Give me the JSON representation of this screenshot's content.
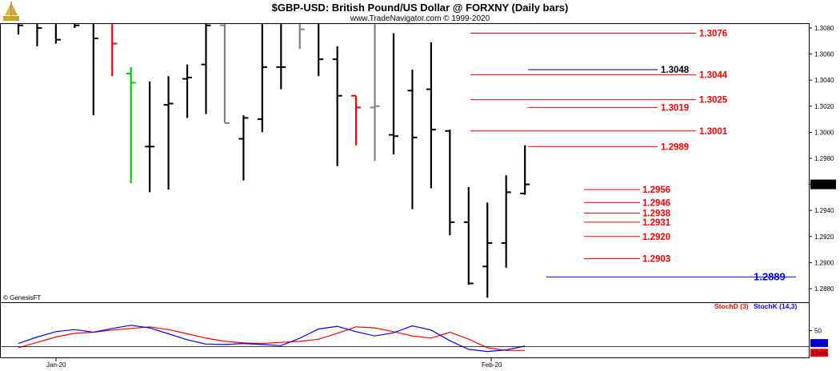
{
  "header": {
    "title": "$GBP-USD:  British Pound/US Dollar @ FORXNY  (Daily bars)",
    "subtitle": "www.TradeNavigator.com © 1999-2020",
    "logo_icon": "sailing-ship-logo"
  },
  "watermark": "© GenesisFT",
  "colors": {
    "bar_up": "#000000",
    "bar_gray": "#808080",
    "bar_red": "#ff0000",
    "bar_green": "#00cc00",
    "level_red": "#ff0000",
    "level_black": "#000000",
    "level_blue": "#0000ff",
    "stoch_d": "#ff0000",
    "stoch_k": "#0000ff",
    "price_marker_bg": "#000000"
  },
  "chart_data": [
    {
      "type": "ohlc",
      "ylim": [
        1.287,
        1.3085
      ],
      "y_ticks": [
        "1.3080",
        "1.3060",
        "1.3040",
        "1.3020",
        "1.3000",
        "1.2980",
        "1.2960",
        "1.2940",
        "1.2920",
        "1.2900",
        "1.2880"
      ],
      "x_ticks": [
        "Jan-20",
        "Feb-20"
      ],
      "last_price": "1.2960",
      "bars": [
        {
          "i": 0,
          "o": 1.3085,
          "h": 1.3085,
          "l": 1.3075,
          "c": 1.3082,
          "color": "bar_up"
        },
        {
          "i": 1,
          "o": 1.3085,
          "h": 1.3085,
          "l": 1.3066,
          "c": 1.308,
          "color": "bar_up"
        },
        {
          "i": 2,
          "o": 1.3085,
          "h": 1.3085,
          "l": 1.3068,
          "c": 1.3071,
          "color": "bar_up"
        },
        {
          "i": 3,
          "o": 1.3085,
          "h": 1.3085,
          "l": 1.308,
          "c": 1.3082,
          "color": "bar_up"
        },
        {
          "i": 4,
          "o": 1.3085,
          "h": 1.3085,
          "l": 1.3013,
          "c": 1.3072,
          "color": "bar_up"
        },
        {
          "i": 5,
          "o": 1.3085,
          "h": 1.3085,
          "l": 1.3043,
          "c": 1.3068,
          "color": "bar_red"
        },
        {
          "i": 6,
          "o": 1.3045,
          "h": 1.305,
          "l": 1.2961,
          "c": 1.3038,
          "color": "bar_green"
        },
        {
          "i": 7,
          "o": 1.2989,
          "h": 1.3039,
          "l": 1.2954,
          "c": 1.2989,
          "color": "bar_up"
        },
        {
          "i": 8,
          "o": 1.3021,
          "h": 1.3043,
          "l": 1.2956,
          "c": 1.3022,
          "color": "bar_up"
        },
        {
          "i": 9,
          "o": 1.3041,
          "h": 1.3052,
          "l": 1.3011,
          "c": 1.3042,
          "color": "bar_up"
        },
        {
          "i": 10,
          "o": 1.3052,
          "h": 1.3085,
          "l": 1.3014,
          "c": 1.3082,
          "color": "bar_up"
        },
        {
          "i": 11,
          "o": 1.3082,
          "h": 1.3085,
          "l": 1.3007,
          "c": 1.3007,
          "color": "bar_gray"
        },
        {
          "i": 12,
          "o": 1.2995,
          "h": 1.3013,
          "l": 1.2963,
          "c": 1.3011,
          "color": "bar_up"
        },
        {
          "i": 13,
          "o": 1.301,
          "h": 1.3085,
          "l": 1.3,
          "c": 1.305,
          "color": "bar_up"
        },
        {
          "i": 14,
          "o": 1.305,
          "h": 1.3085,
          "l": 1.3033,
          "c": 1.305,
          "color": "bar_up"
        },
        {
          "i": 15,
          "o": 1.3085,
          "h": 1.3085,
          "l": 1.3064,
          "c": 1.3079,
          "color": "bar_gray"
        },
        {
          "i": 16,
          "o": 1.3085,
          "h": 1.3085,
          "l": 1.3043,
          "c": 1.3056,
          "color": "bar_up"
        },
        {
          "i": 17,
          "o": 1.3056,
          "h": 1.3066,
          "l": 1.2974,
          "c": 1.3028,
          "color": "bar_up"
        },
        {
          "i": 18,
          "o": 1.3028,
          "h": 1.3028,
          "l": 1.299,
          "c": 1.3019,
          "color": "bar_red"
        },
        {
          "i": 19,
          "o": 1.3019,
          "h": 1.3085,
          "l": 1.2978,
          "c": 1.302,
          "color": "bar_gray"
        },
        {
          "i": 20,
          "o": 1.2998,
          "h": 1.3076,
          "l": 1.2983,
          "c": 1.2997,
          "color": "bar_up"
        },
        {
          "i": 21,
          "o": 1.3032,
          "h": 1.3048,
          "l": 1.2941,
          "c": 1.2996,
          "color": "bar_up"
        },
        {
          "i": 22,
          "o": 1.3033,
          "h": 1.3069,
          "l": 1.2957,
          "c": 1.3002,
          "color": "bar_up"
        },
        {
          "i": 23,
          "o": 1.3001,
          "h": 1.3002,
          "l": 1.2921,
          "c": 1.2931,
          "color": "bar_up"
        },
        {
          "i": 24,
          "o": 1.2931,
          "h": 1.2958,
          "l": 1.2883,
          "c": 1.2884,
          "color": "bar_up"
        },
        {
          "i": 25,
          "o": 1.2897,
          "h": 1.2946,
          "l": 1.2873,
          "c": 1.2915,
          "color": "bar_up"
        },
        {
          "i": 26,
          "o": 1.2915,
          "h": 1.2967,
          "l": 1.2896,
          "c": 1.2954,
          "color": "bar_up"
        },
        {
          "i": 27,
          "o": 1.2953,
          "h": 1.299,
          "l": 1.2952,
          "c": 1.296,
          "color": "bar_up"
        }
      ],
      "levels": [
        {
          "value": 1.3076,
          "label": "1.3076",
          "color": "level_red",
          "x_from": 1.3076,
          "span": "wide"
        },
        {
          "value": 1.3048,
          "label": "1.3048",
          "color": "level_black",
          "span": "short"
        },
        {
          "value": 1.3044,
          "label": "1.3044",
          "color": "level_red",
          "span": "wide"
        },
        {
          "value": 1.3025,
          "label": "1.3025",
          "color": "level_red",
          "span": "wide"
        },
        {
          "value": 1.3019,
          "label": "1.3019",
          "color": "level_red",
          "span": "short"
        },
        {
          "value": 1.3001,
          "label": "1.3001",
          "color": "level_red",
          "span": "wide"
        },
        {
          "value": 1.2989,
          "label": "1.2989",
          "color": "level_red",
          "span": "short"
        },
        {
          "value": 1.2956,
          "label": "1.2956",
          "color": "level_red",
          "span": "tiny"
        },
        {
          "value": 1.2946,
          "label": "1.2946",
          "color": "level_red",
          "span": "tiny"
        },
        {
          "value": 1.2938,
          "label": "1.2938",
          "color": "level_red",
          "span": "tiny"
        },
        {
          "value": 1.2931,
          "label": "1.2931",
          "color": "level_red",
          "span": "tiny"
        },
        {
          "value": 1.292,
          "label": "1.2920",
          "color": "level_red",
          "span": "tiny"
        },
        {
          "value": 1.2903,
          "label": "1.2903",
          "color": "level_red",
          "span": "tiny"
        },
        {
          "value": 1.2889,
          "label": "1.2889",
          "color": "level_blue",
          "span": "blue"
        }
      ]
    },
    {
      "type": "line",
      "name": "stochastic",
      "ylim": [
        0,
        100
      ],
      "y_ticks": [
        "50"
      ],
      "legend": [
        "StochD (3)",
        "StochK (14,3)"
      ],
      "last_values": {
        "k": "20.81",
        "d": "13.05"
      },
      "series": [
        {
          "name": "StochD (3)",
          "color": "stoch_d",
          "values": [
            18,
            28,
            38,
            45,
            47,
            51,
            54,
            57,
            52,
            44,
            36,
            30,
            27,
            26,
            28,
            30,
            34,
            45,
            57,
            55,
            48,
            40,
            36,
            47,
            34,
            18,
            13,
            13
          ]
        },
        {
          "name": "StochK (14,3)",
          "color": "stoch_k",
          "values": [
            26,
            38,
            48,
            52,
            47,
            54,
            60,
            55,
            44,
            33,
            25,
            24,
            26,
            24,
            22,
            36,
            53,
            58,
            48,
            40,
            46,
            59,
            51,
            31,
            15,
            11,
            14,
            21
          ]
        }
      ]
    }
  ]
}
